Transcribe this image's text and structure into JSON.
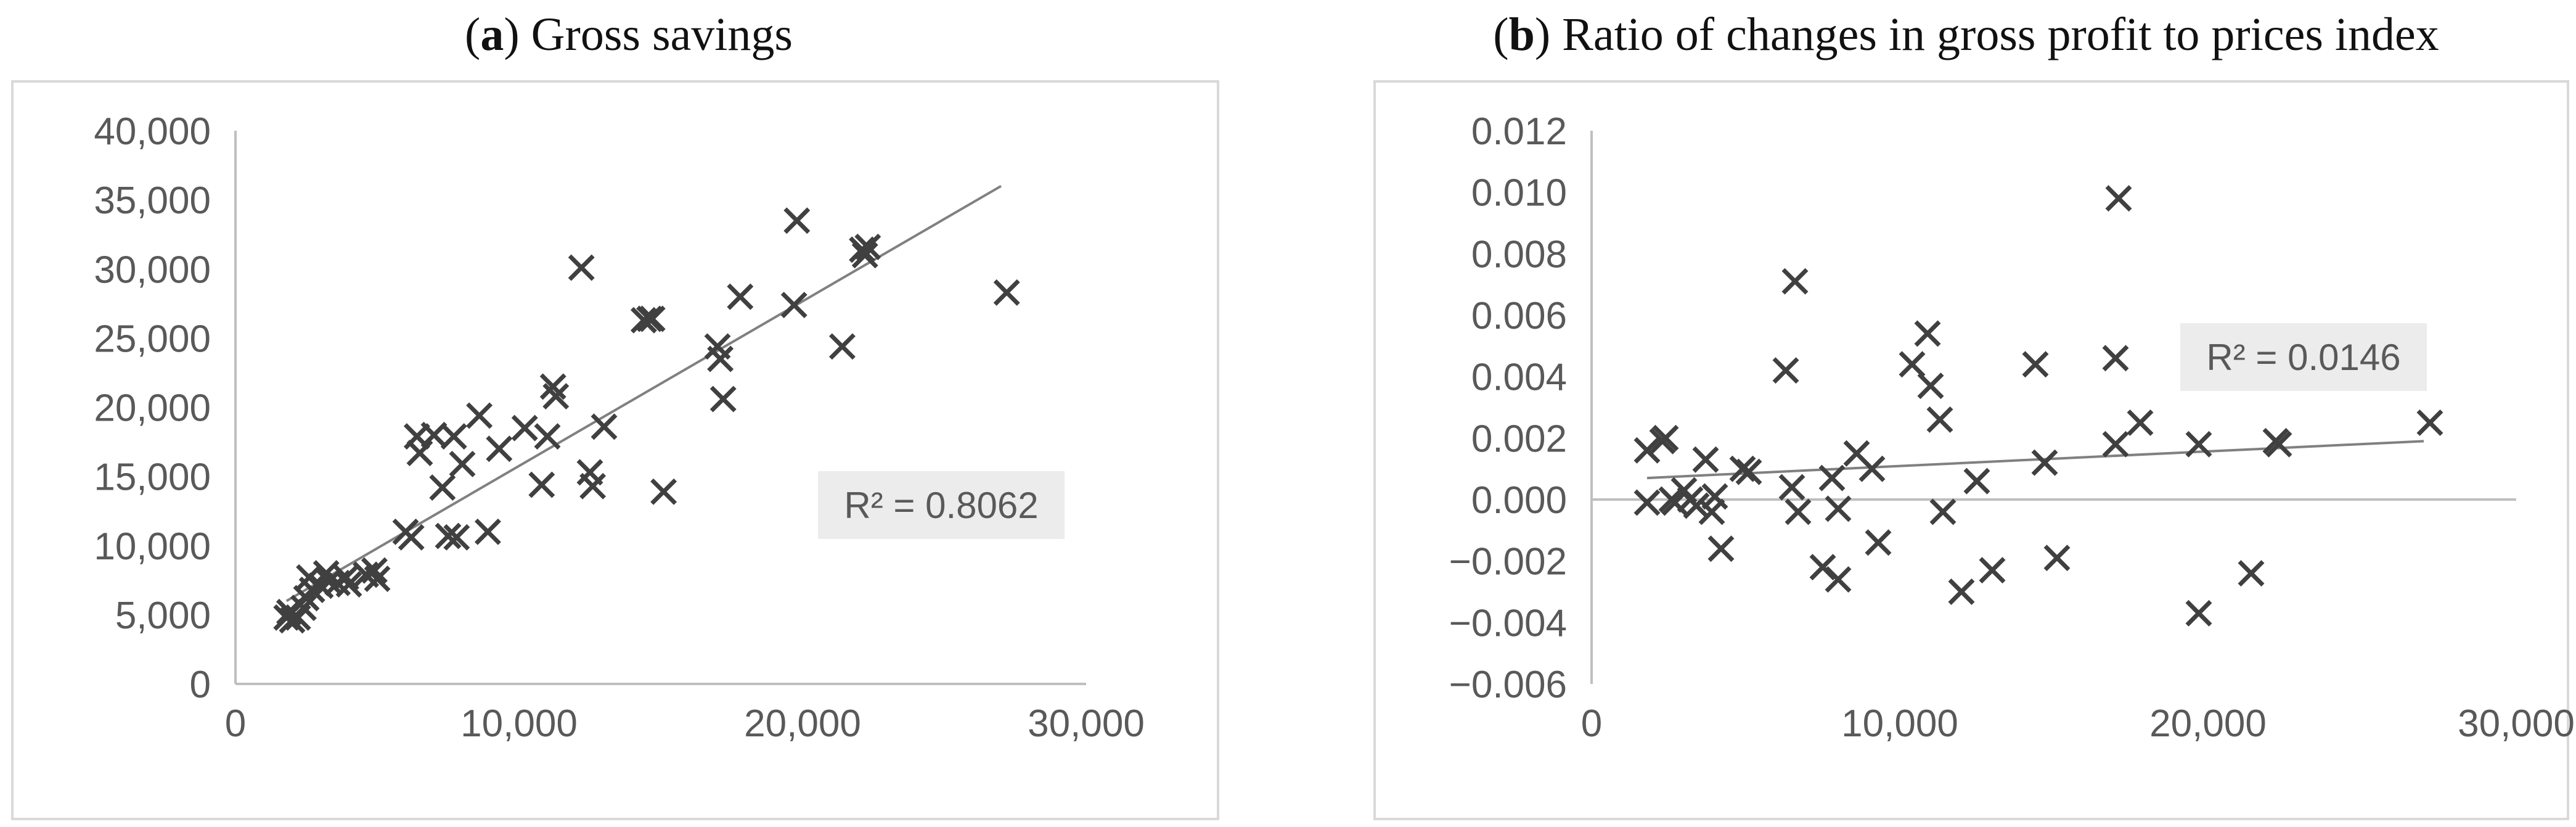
{
  "figure": {
    "colors": {
      "marker": "#404040",
      "trendline": "#808080",
      "axis": "#bfbfbf",
      "text": "#595959",
      "r2_box": "#ececec"
    }
  },
  "chart_data": [
    {
      "type": "scatter",
      "panel_label": "a",
      "title": "Gross savings",
      "xlabel": "",
      "ylabel": "",
      "xlim": [
        0,
        30000
      ],
      "ylim": [
        0,
        40000
      ],
      "xticks": [
        "0",
        "10,000",
        "20,000",
        "30,000"
      ],
      "yticks": [
        "0",
        "5,000",
        "10,000",
        "15,000",
        "20,000",
        "25,000",
        "30,000",
        "35,000",
        "40,000"
      ],
      "marker": "x",
      "grid": false,
      "legend": "none",
      "trendline": {
        "type": "linear",
        "x": [
          1800,
          27000
        ],
        "y": [
          6000,
          36000
        ]
      },
      "r_squared_label": "R² = 0.8062",
      "points": [
        [
          1800,
          4800
        ],
        [
          1900,
          5200
        ],
        [
          2000,
          4600
        ],
        [
          2200,
          4800
        ],
        [
          2400,
          5500
        ],
        [
          2500,
          6200
        ],
        [
          2600,
          7700
        ],
        [
          2700,
          6800
        ],
        [
          3000,
          7100
        ],
        [
          3200,
          8000
        ],
        [
          3300,
          7400
        ],
        [
          3600,
          7300
        ],
        [
          3900,
          7700
        ],
        [
          4000,
          7200
        ],
        [
          4600,
          7900
        ],
        [
          4900,
          8200
        ],
        [
          5000,
          7600
        ],
        [
          6000,
          11000
        ],
        [
          6200,
          10600
        ],
        [
          6400,
          17900
        ],
        [
          6500,
          16700
        ],
        [
          7000,
          18000
        ],
        [
          7300,
          14200
        ],
        [
          7500,
          10700
        ],
        [
          7700,
          17900
        ],
        [
          7800,
          10600
        ],
        [
          8000,
          15900
        ],
        [
          8600,
          19400
        ],
        [
          8900,
          11000
        ],
        [
          9300,
          17000
        ],
        [
          10200,
          18500
        ],
        [
          10800,
          14400
        ],
        [
          11000,
          17900
        ],
        [
          11200,
          21500
        ],
        [
          11300,
          20800
        ],
        [
          12200,
          30100
        ],
        [
          12500,
          15300
        ],
        [
          12600,
          14300
        ],
        [
          13000,
          18600
        ],
        [
          14400,
          26300
        ],
        [
          14600,
          26400
        ],
        [
          14700,
          26400
        ],
        [
          15100,
          13900
        ],
        [
          17000,
          24400
        ],
        [
          17100,
          23500
        ],
        [
          17200,
          20600
        ],
        [
          17800,
          28000
        ],
        [
          19700,
          27400
        ],
        [
          19800,
          33500
        ],
        [
          21400,
          24400
        ],
        [
          22100,
          31400
        ],
        [
          22200,
          31000
        ],
        [
          22300,
          31600
        ],
        [
          27200,
          28300
        ]
      ]
    },
    {
      "type": "scatter",
      "panel_label": "b",
      "title": "Ratio of changes in gross profit to prices index",
      "xlabel": "",
      "ylabel": "",
      "xlim": [
        0,
        30000
      ],
      "ylim": [
        -0.006,
        0.012
      ],
      "xticks": [
        "0",
        "10,000",
        "20,000",
        "30,000"
      ],
      "yticks": [
        "−0.006",
        "−0.004",
        "−0.002",
        "0.000",
        "0.002",
        "0.004",
        "0.006",
        "0.008",
        "0.010",
        "0.012"
      ],
      "marker": "x",
      "grid": false,
      "legend": "none",
      "trendline": {
        "type": "linear",
        "x": [
          1800,
          27000
        ],
        "y": [
          0.0007,
          0.0019
        ]
      },
      "r_squared_label": "R² = 0.0146",
      "points": [
        [
          1800,
          0.0016
        ],
        [
          1800,
          -0.0001
        ],
        [
          2300,
          0.0019
        ],
        [
          2400,
          0.002
        ],
        [
          2600,
          0.0
        ],
        [
          2700,
          -0.0001
        ],
        [
          3000,
          0.0003
        ],
        [
          3200,
          0.0
        ],
        [
          3400,
          -0.0002
        ],
        [
          3700,
          0.0013
        ],
        [
          3900,
          -0.0004
        ],
        [
          4000,
          0.0001
        ],
        [
          4200,
          -0.0016
        ],
        [
          4900,
          0.001
        ],
        [
          5100,
          0.0009
        ],
        [
          6300,
          0.0042
        ],
        [
          6500,
          0.0004
        ],
        [
          6700,
          -0.0004
        ],
        [
          6600,
          0.0071
        ],
        [
          7500,
          -0.0022
        ],
        [
          7800,
          0.0007
        ],
        [
          8000,
          -0.0003
        ],
        [
          8000,
          -0.0026
        ],
        [
          8600,
          0.0015
        ],
        [
          9100,
          0.001
        ],
        [
          9300,
          -0.0014
        ],
        [
          10400,
          0.0044
        ],
        [
          10900,
          0.0054
        ],
        [
          11000,
          0.0037
        ],
        [
          11300,
          0.0026
        ],
        [
          11400,
          -0.0004
        ],
        [
          12000,
          -0.003
        ],
        [
          12500,
          0.0006
        ],
        [
          13000,
          -0.0023
        ],
        [
          14400,
          0.0044
        ],
        [
          14700,
          0.0012
        ],
        [
          15100,
          -0.0019
        ],
        [
          17000,
          0.0046
        ],
        [
          17100,
          0.0098
        ],
        [
          17000,
          0.0018
        ],
        [
          17800,
          0.0025
        ],
        [
          19700,
          0.0018
        ],
        [
          19700,
          -0.0037
        ],
        [
          21400,
          -0.0024
        ],
        [
          22200,
          0.0019
        ],
        [
          22300,
          0.0018
        ],
        [
          27200,
          0.0025
        ]
      ]
    }
  ]
}
